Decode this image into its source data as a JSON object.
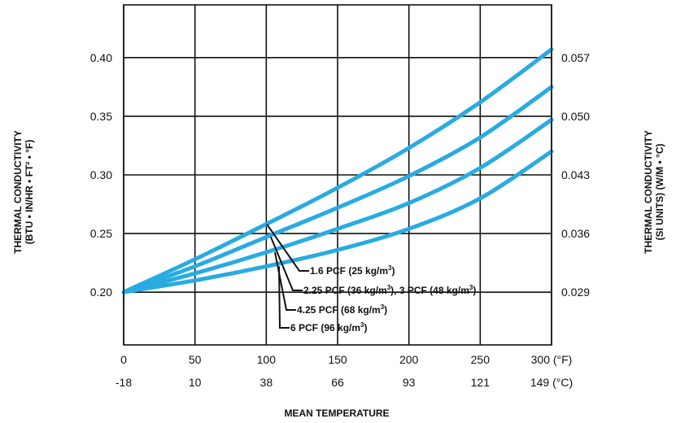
{
  "chart_data": {
    "type": "line",
    "xlabel": "MEAN TEMPERATURE",
    "ylabel_left_line1": "THERMAL CONDUCTIVITY",
    "ylabel_left_line2": "(BTU • IN/HR • FT² • °F)",
    "ylabel_right_line1": "THERMAL CONDUCTIVITY",
    "ylabel_right_line2": "(SI UNITS) (W/M • °C)",
    "xlim": [
      0,
      300
    ],
    "ylim": [
      0.155,
      0.445
    ],
    "grid": true,
    "x_ticks_f": [
      {
        "v": 0,
        "label": "0"
      },
      {
        "v": 50,
        "label": "50"
      },
      {
        "v": 100,
        "label": "100"
      },
      {
        "v": 150,
        "label": "150"
      },
      {
        "v": 200,
        "label": "200"
      },
      {
        "v": 250,
        "label": "250"
      },
      {
        "v": 300,
        "label": "300 (°F)"
      }
    ],
    "x_ticks_c": [
      {
        "v": 0,
        "label": "-18"
      },
      {
        "v": 50,
        "label": "10"
      },
      {
        "v": 100,
        "label": "38"
      },
      {
        "v": 150,
        "label": "66"
      },
      {
        "v": 200,
        "label": "93"
      },
      {
        "v": 250,
        "label": "121"
      },
      {
        "v": 300,
        "label": "149 (°C)"
      }
    ],
    "y_ticks_left": [
      {
        "v": 0.2,
        "label": "0.20"
      },
      {
        "v": 0.25,
        "label": "0.25"
      },
      {
        "v": 0.3,
        "label": "0.30"
      },
      {
        "v": 0.35,
        "label": "0.35"
      },
      {
        "v": 0.4,
        "label": "0.40"
      }
    ],
    "y_ticks_right": [
      {
        "v": 0.2,
        "label": "0.029"
      },
      {
        "v": 0.25,
        "label": "0.036"
      },
      {
        "v": 0.3,
        "label": "0.043"
      },
      {
        "v": 0.35,
        "label": "0.050"
      },
      {
        "v": 0.4,
        "label": "0.057"
      }
    ],
    "x": [
      0,
      50,
      100,
      150,
      200,
      250,
      300
    ],
    "series": [
      {
        "name": "1.6 PCF (25 kg/m³)",
        "values": [
          0.2,
          0.228,
          0.258,
          0.289,
          0.323,
          0.362,
          0.407
        ]
      },
      {
        "name": "2.25 PCF (36 kg/m³), 3 PCF (48 kg/m³)",
        "values": [
          0.2,
          0.222,
          0.247,
          0.272,
          0.299,
          0.332,
          0.375
        ]
      },
      {
        "name": "4.25 PCF (68 kg/m³)",
        "values": [
          0.2,
          0.216,
          0.234,
          0.254,
          0.276,
          0.306,
          0.347
        ]
      },
      {
        "name": "6 PCF (96 kg/m³)",
        "values": [
          0.2,
          0.21,
          0.222,
          0.236,
          0.254,
          0.28,
          0.32
        ]
      }
    ],
    "annotations": [
      {
        "series": 0,
        "at_x": 100,
        "text": "1.6 PCF (25 kg/m",
        "sup": "3",
        "close": ")"
      },
      {
        "series": 1,
        "at_x": 100,
        "text": "2.25 PCF (36 kg/m",
        "sup": "3",
        "mid": "), 3 PCF (48 kg/m",
        "sup2": "3",
        "close": ")"
      },
      {
        "series": 2,
        "at_x": 100,
        "text": "4.25 PCF (68 kg/m",
        "sup": "3",
        "close": ")"
      },
      {
        "series": 3,
        "at_x": 100,
        "text": "6 PCF (96 kg/m",
        "sup": "3",
        "close": ")"
      }
    ],
    "line_color": "#29abe2"
  }
}
